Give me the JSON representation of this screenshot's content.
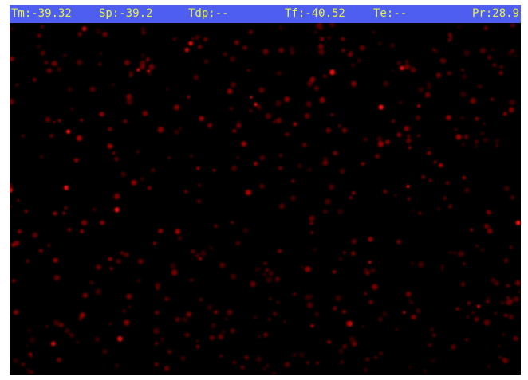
{
  "status_bar": {
    "tm": "Tm:-39.32",
    "sp": "Sp:-39.2",
    "tdp": "Tdp:--",
    "tf": "Tf:-40.52",
    "te": "Te:--",
    "pr": "Pr:28.9"
  },
  "colors": {
    "status_bar_bg": "#4d5ef0",
    "status_text": "#e8f04a",
    "background": "#000000",
    "particle": "#ff1a1a"
  }
}
